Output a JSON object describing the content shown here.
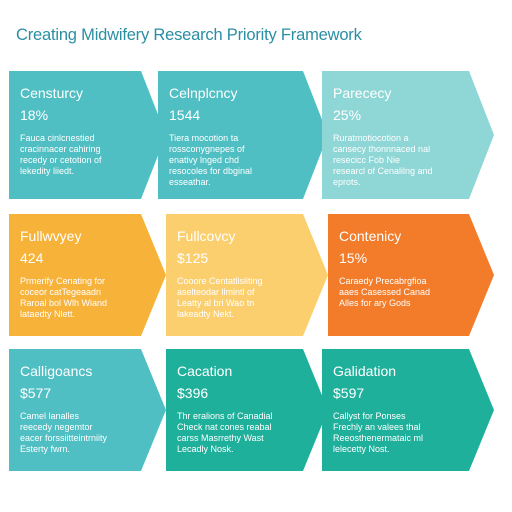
{
  "title": "Creating Midwifery Research Priority Framework",
  "colors": {
    "teal": "#4fbfc3",
    "teal_light": "#8fd6d6",
    "amber": "#f7b23a",
    "amber_light": "#fbcf6e",
    "orange": "#f27c2a",
    "green_teal": "#1fb09b",
    "title": "#2a8fa3"
  },
  "rows": [
    {
      "cards": [
        {
          "label": "Censturcy",
          "value": "18%",
          "desc": [
            "Fauca cinlcnestied",
            "cracinnacer cahiring",
            "recedy or cetotion of",
            "lekedity liiedt."
          ],
          "color": "teal"
        },
        {
          "label": "Celnplcncy",
          "value": "1544",
          "desc": [
            "Tiera mocotion ta",
            "rossconygnepes of",
            "enativy lnged chd",
            "resocoles for dbginal",
            "esseathar."
          ],
          "color": "teal"
        },
        {
          "label": "Parececy",
          "value": "25%",
          "desc": [
            "Ruratmotiocotion a",
            "cansecy thonnnaced nal",
            "resecicc Fob Nie",
            "researcl of Cenalilng and",
            "eprots."
          ],
          "color": "teal_light"
        }
      ]
    },
    {
      "cards": [
        {
          "label": "Fullwvyey",
          "value": "424",
          "desc": [
            "Prmerify Cenating for",
            "coceor catTegeaadn",
            "Raroal bol Wlh Wiand",
            "lataedty Nlett."
          ],
          "color": "amber"
        },
        {
          "label": "Fullcovcy",
          "value": "$125",
          "desc": [
            "Cooore Centatlisliting",
            "aselteodar llmintl of",
            "Leatty al bri Wao tn",
            "lakeadty Nekt."
          ],
          "color": "amber_light"
        },
        {
          "label": "Contenicy",
          "value": "15%",
          "desc": [
            "Caraedy Precabrgfioa",
            "aaes Casessed Canad",
            "Alles for ary Gods"
          ],
          "color": "orange"
        }
      ]
    },
    {
      "cards": [
        {
          "label": "Calligoancs",
          "value": "$577",
          "desc": [
            "Camel lanalles",
            "reecedy negemtor",
            "eacer forssiitteintrniity",
            "Esterty fwrn."
          ],
          "color": "teal"
        },
        {
          "label": "Cacation",
          "value": "$396",
          "desc": [
            "Thr eralions of Canadial",
            "Check nat cones reabal",
            "carss Masrrethy Wast",
            "Lecadly Nosk."
          ],
          "color": "green_teal"
        },
        {
          "label": "Galidation",
          "value": "$597",
          "desc": [
            "Callyst for Ponses",
            "Frechly an valees thal",
            "Reeosthenermataic ml",
            "lelecetty Nost."
          ],
          "color": "green_teal"
        }
      ]
    }
  ]
}
